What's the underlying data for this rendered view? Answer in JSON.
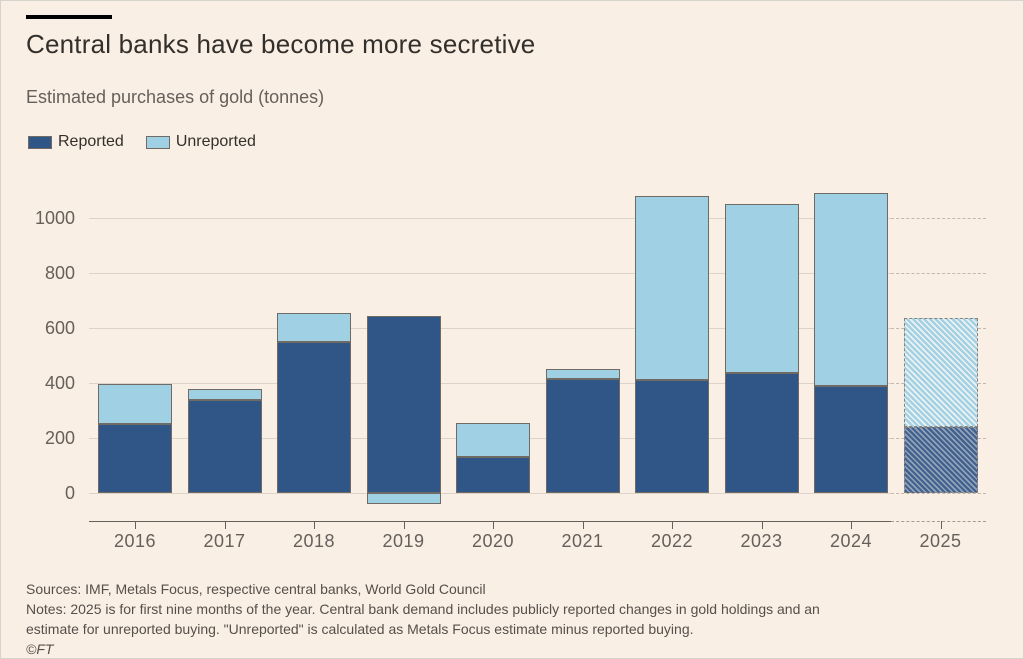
{
  "header": {
    "title": "Central banks have become more secretive",
    "subtitle": "Estimated purchases of gold (tonnes)"
  },
  "chart_data": {
    "type": "bar",
    "stacked": true,
    "title": "Central banks have become more secretive",
    "subtitle": "Estimated purchases of gold (tonnes)",
    "unit": "tonnes",
    "categories": [
      "2016",
      "2017",
      "2018",
      "2019",
      "2020",
      "2021",
      "2022",
      "2023",
      "2024",
      "2025"
    ],
    "series": [
      {
        "name": "Reported",
        "color": "#305687",
        "values": [
          250,
          340,
          550,
          645,
          130,
          415,
          410,
          435,
          390,
          240
        ]
      },
      {
        "name": "Unreported",
        "color": "#a0d0e3",
        "values": [
          145,
          40,
          105,
          -40,
          125,
          35,
          670,
          615,
          700,
          395
        ]
      }
    ],
    "yticks": [
      0,
      200,
      400,
      600,
      800,
      1000
    ],
    "ylim": [
      -100,
      1100
    ],
    "grid": "horizontal",
    "legend_position": "top-left",
    "hatched_categories": [
      "2025"
    ]
  },
  "footer": {
    "sources": "Sources: IMF, Metals Focus, respective central banks, World Gold Council",
    "notes_lines": [
      "Notes: 2025 is for first nine months of the year. Central bank demand includes publicly reported changes in gold holdings and an",
      "estimate for unreported buying. \"Unreported\" is calculated as Metals Focus estimate minus reported buying."
    ],
    "copyright": "©FT"
  },
  "colors": {
    "background": "#faefe4",
    "reported": "#305687",
    "unreported": "#a0d0e3",
    "bar_border": "#6f6a64",
    "grid": "#dcd3c9",
    "grid_dashed": "#c2b8ad",
    "axis": "#66605b",
    "title_text": "#33302c",
    "muted_text": "#66605b",
    "footer_text": "#55504b",
    "kicker_rule": "#000000"
  }
}
